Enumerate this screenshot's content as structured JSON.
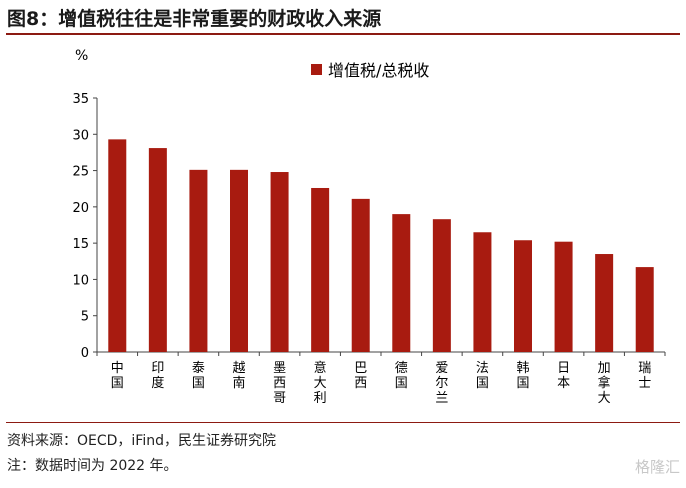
{
  "figure": {
    "title": "图8：增值税往往是非常重要的财政收入来源",
    "source": "资料来源：OECD，iFind，民生证券研究院",
    "note": "注：数据时间为 2022 年。",
    "watermark": "格隆汇"
  },
  "chart_data": {
    "type": "bar",
    "unit_label": "%",
    "categories": [
      "中国",
      "印度",
      "泰国",
      "越南",
      "墨西哥",
      "意大利",
      "巴西",
      "德国",
      "爱尔兰",
      "法国",
      "韩国",
      "日本",
      "加拿大",
      "瑞士"
    ],
    "series": [
      {
        "name": "增值税/总税收",
        "values": [
          29.3,
          28.1,
          25.1,
          25.1,
          24.8,
          22.6,
          21.1,
          19.0,
          18.3,
          16.5,
          15.4,
          15.2,
          13.5,
          11.7
        ]
      }
    ],
    "ylim": [
      0,
      35
    ],
    "yticks": [
      "0",
      "5",
      "10",
      "15",
      "20",
      "25",
      "30",
      "35"
    ],
    "legend_position": "top-center",
    "grid": false,
    "bar_color": "#a81b10"
  }
}
